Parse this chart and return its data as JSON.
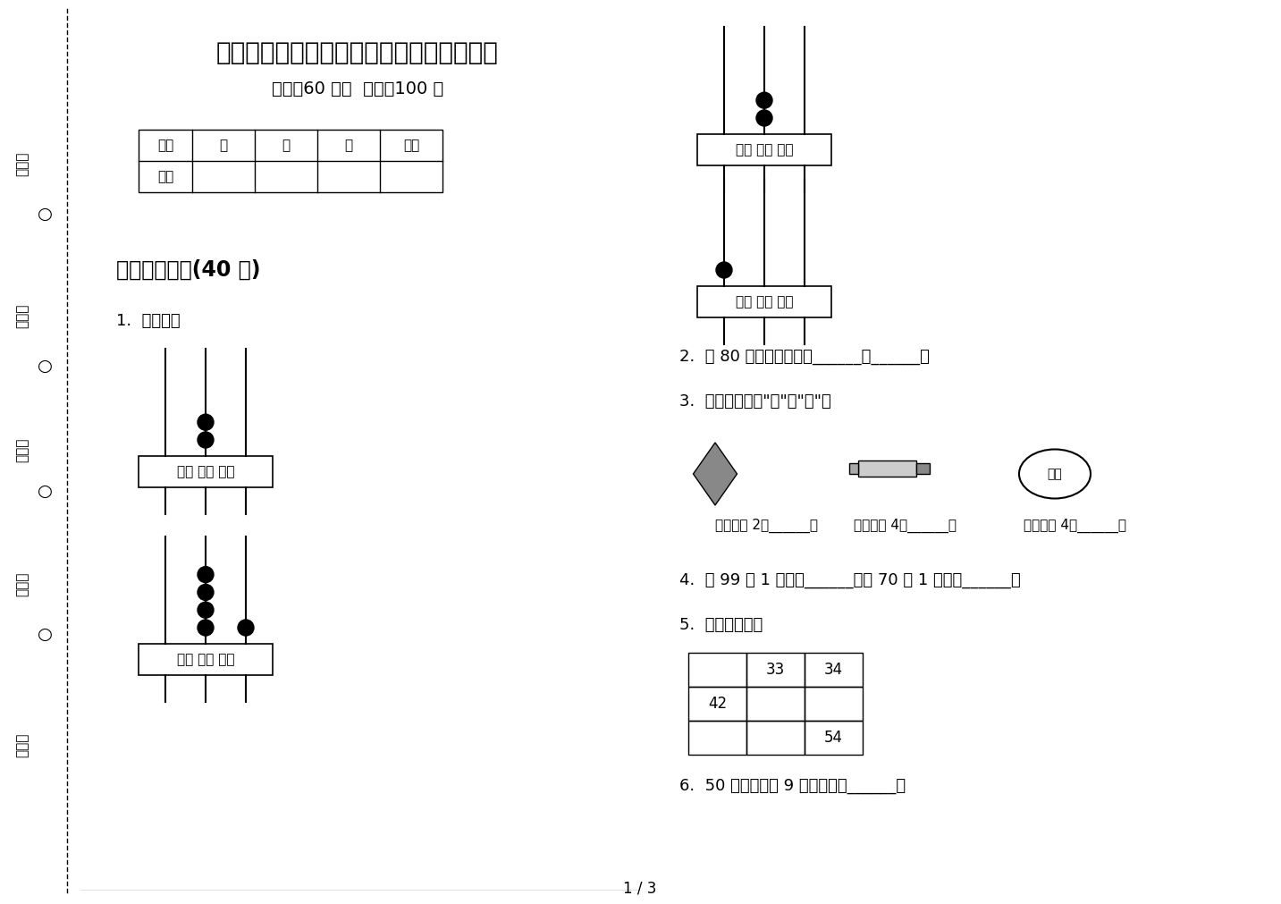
{
  "title": "部编人教版一年级积累下学期数学期末试卷",
  "subtitle": "时间：60 分钟  满分：100 分",
  "bg_color": "#ffffff",
  "text_color": "#000000",
  "page_num": "1 / 3"
}
